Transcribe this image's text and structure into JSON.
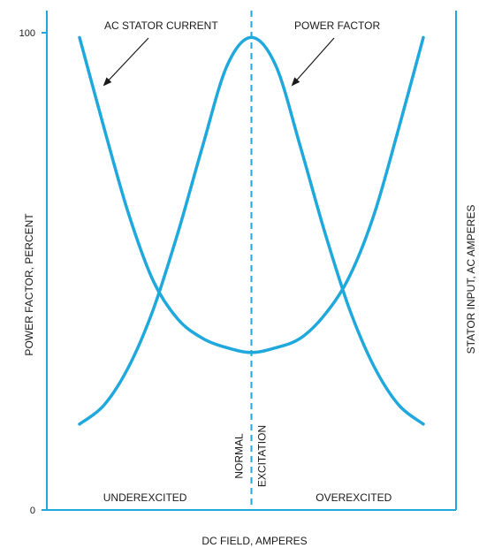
{
  "chart_data": {
    "type": "line",
    "title": "",
    "xlabel": "DC FIELD, AMPERES",
    "ylabel": "POWER FACTOR, PERCENT",
    "y2label": "STATOR INPUT, AC AMPERES",
    "ylim": [
      0,
      100
    ],
    "xlim": [
      0,
      100
    ],
    "yticks": [
      {
        "value": 0,
        "label": "0"
      },
      {
        "value": 100,
        "label": "100"
      }
    ],
    "grid": false,
    "colors": {
      "curve": "#1fa8dc",
      "axis": "#1fa8dc",
      "text": "#1a1a1a"
    },
    "normal_excitation": {
      "x": 50,
      "label_line1": "NORMAL",
      "label_line2": "EXCITATION"
    },
    "regions": [
      {
        "label": "UNDEREXCITED",
        "x": 24
      },
      {
        "label": "OVEREXCITED",
        "x": 75
      }
    ],
    "series": [
      {
        "name": "AC STATOR CURRENT",
        "x": [
          8,
          14,
          20,
          26,
          32,
          38,
          44,
          50,
          56,
          62,
          68,
          74,
          80,
          86,
          92
        ],
        "y": [
          99,
          80,
          62,
          48,
          40,
          36,
          34,
          33,
          34,
          36,
          41,
          49,
          62,
          80,
          99
        ]
      },
      {
        "name": "POWER FACTOR",
        "x": [
          8,
          14,
          20,
          26,
          32,
          38,
          44,
          50,
          56,
          62,
          68,
          74,
          80,
          86,
          92
        ],
        "y": [
          18,
          22,
          30,
          42,
          58,
          76,
          93,
          99,
          93,
          76,
          58,
          42,
          30,
          22,
          18
        ]
      }
    ],
    "annotations": [
      {
        "text": "AC STATOR CURRENT",
        "points_to": "AC STATOR CURRENT"
      },
      {
        "text": "POWER FACTOR",
        "points_to": "POWER FACTOR"
      }
    ]
  }
}
